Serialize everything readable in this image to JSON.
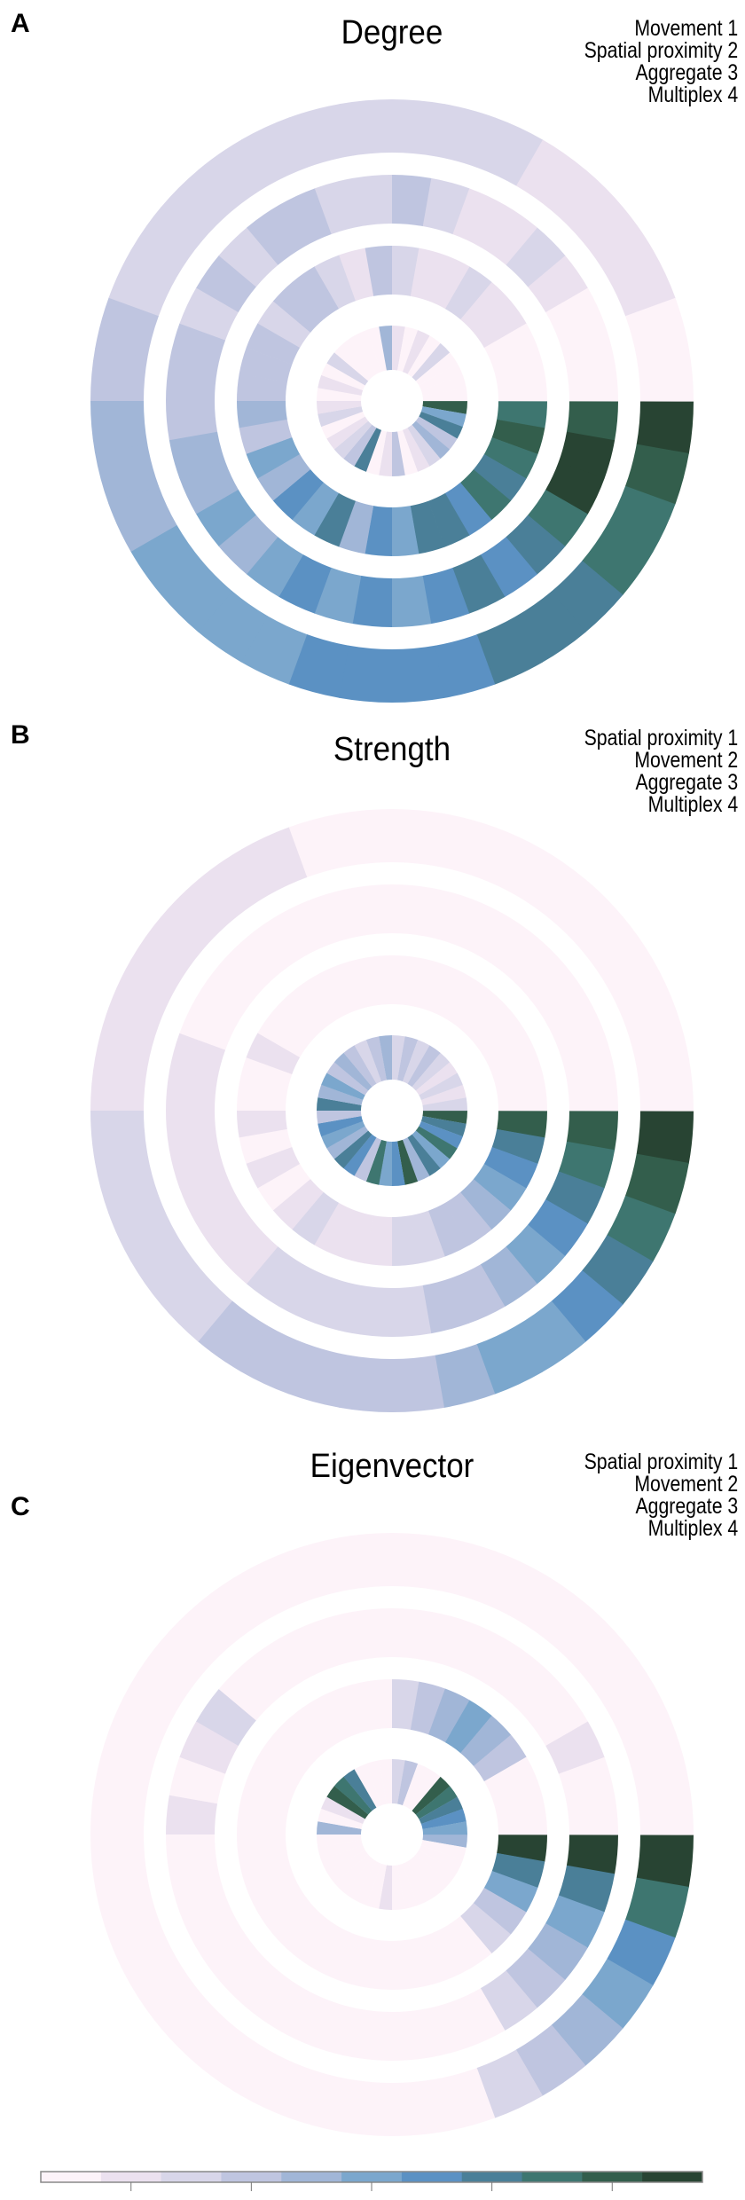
{
  "colors": [
    "#fdf3f9",
    "#ebe1ef",
    "#d8d6e9",
    "#bfc5e0",
    "#a1b6d7",
    "#7ba7cd",
    "#5b91c3",
    "#4a7f98",
    "#3e7670",
    "#335e4c",
    "#284433"
  ],
  "chart_data": [
    {
      "type": "radial-heatmap",
      "letter": "A",
      "title": "Degree",
      "legend": [
        "Movement 1",
        "Spatial proximity 2",
        "Aggregate 3",
        "Multiplex 4"
      ],
      "sector_order": "clockwise from east, 36 sectors",
      "rings_inner_to_outer": [
        [
          9,
          5,
          7,
          3,
          4,
          2,
          1,
          0,
          3,
          1,
          0,
          7,
          3,
          2,
          1,
          0,
          2,
          1,
          0,
          1,
          0,
          2,
          0,
          0,
          0,
          0,
          4,
          1,
          0,
          1,
          0,
          2,
          0,
          0,
          0,
          0
        ],
        [
          8,
          9,
          8,
          7,
          8,
          6,
          7,
          7,
          5,
          6,
          4,
          7,
          5,
          6,
          4,
          5,
          3,
          4,
          3,
          3,
          3,
          2,
          3,
          3,
          2,
          1,
          3,
          2,
          1,
          1,
          2,
          1,
          1,
          0,
          0,
          0
        ],
        [
          9,
          10,
          10,
          8,
          7,
          6,
          7,
          6,
          5,
          6,
          5,
          6,
          5,
          4,
          5,
          4,
          4,
          3,
          3,
          3,
          2,
          3,
          2,
          3,
          3,
          2,
          2,
          3,
          2,
          1,
          1,
          2,
          1,
          0,
          0,
          0
        ],
        [
          10,
          9,
          8,
          8,
          7,
          7,
          7,
          6,
          6,
          6,
          6,
          5,
          5,
          5,
          5,
          4,
          4,
          4,
          3,
          3,
          2,
          2,
          2,
          2,
          2,
          2,
          2,
          2,
          2,
          2,
          1,
          1,
          1,
          1,
          0,
          0
        ]
      ]
    },
    {
      "type": "radial-heatmap",
      "letter": "B",
      "title": "Strength",
      "legend": [
        "Spatial proximity 1",
        "Movement 2",
        "Aggregate 3",
        "Multiplex 4"
      ],
      "sector_order": "clockwise from east, 36 sectors",
      "rings_inner_to_outer": [
        [
          9,
          7,
          6,
          8,
          5,
          7,
          4,
          9,
          6,
          5,
          8,
          3,
          6,
          7,
          4,
          5,
          6,
          3,
          7,
          4,
          5,
          3,
          4,
          3,
          2,
          3,
          4,
          2,
          3,
          2,
          3,
          2,
          1,
          2,
          1,
          2
        ],
        [
          9,
          7,
          6,
          5,
          4,
          3,
          3,
          2,
          2,
          1,
          1,
          1,
          2,
          1,
          0,
          1,
          0,
          1,
          0,
          0,
          1,
          0,
          0,
          0,
          0,
          0,
          0,
          0,
          0,
          0,
          0,
          0,
          0,
          0,
          0,
          0
        ],
        [
          9,
          8,
          7,
          6,
          5,
          4,
          3,
          3,
          2,
          2,
          2,
          2,
          2,
          1,
          1,
          1,
          1,
          1,
          1,
          1,
          0,
          0,
          0,
          0,
          0,
          0,
          0,
          0,
          0,
          0,
          0,
          0,
          0,
          0,
          0,
          0
        ],
        [
          10,
          9,
          8,
          7,
          6,
          5,
          5,
          4,
          3,
          3,
          3,
          3,
          3,
          2,
          2,
          2,
          2,
          2,
          1,
          1,
          1,
          1,
          1,
          1,
          1,
          0,
          0,
          0,
          0,
          0,
          0,
          0,
          0,
          0,
          0,
          0
        ]
      ]
    },
    {
      "type": "radial-heatmap",
      "letter": "C",
      "title": "Eigenvector",
      "legend": [
        "Spatial proximity 1",
        "Movement 2",
        "Aggregate 3",
        "Multiplex 4"
      ],
      "sector_order": "clockwise from east, 36 sectors",
      "rings_inner_to_outer": [
        [
          4,
          0,
          0,
          0,
          0,
          0,
          0,
          0,
          0,
          1,
          0,
          0,
          0,
          0,
          0,
          0,
          0,
          0,
          4,
          0,
          1,
          9,
          8,
          7,
          0,
          0,
          0,
          2,
          3,
          0,
          0,
          9,
          8,
          7,
          6,
          5
        ],
        [
          10,
          7,
          5,
          3,
          2,
          0,
          0,
          0,
          0,
          0,
          0,
          0,
          0,
          0,
          0,
          0,
          0,
          0,
          0,
          0,
          0,
          0,
          0,
          0,
          0,
          0,
          0,
          2,
          3,
          4,
          5,
          4,
          3,
          0,
          0,
          0
        ],
        [
          10,
          7,
          5,
          4,
          3,
          2,
          0,
          0,
          0,
          0,
          0,
          0,
          0,
          0,
          0,
          0,
          0,
          0,
          1,
          0,
          1,
          2,
          0,
          0,
          0,
          0,
          0,
          0,
          0,
          0,
          0,
          0,
          0,
          1,
          0,
          0
        ],
        [
          10,
          8,
          6,
          5,
          4,
          3,
          2,
          0,
          0,
          0,
          0,
          0,
          0,
          0,
          0,
          0,
          0,
          0,
          0,
          0,
          0,
          0,
          0,
          0,
          0,
          0,
          0,
          0,
          0,
          0,
          0,
          0,
          0,
          0,
          0,
          0
        ]
      ]
    }
  ],
  "colorbar": {
    "levels": 11
  }
}
